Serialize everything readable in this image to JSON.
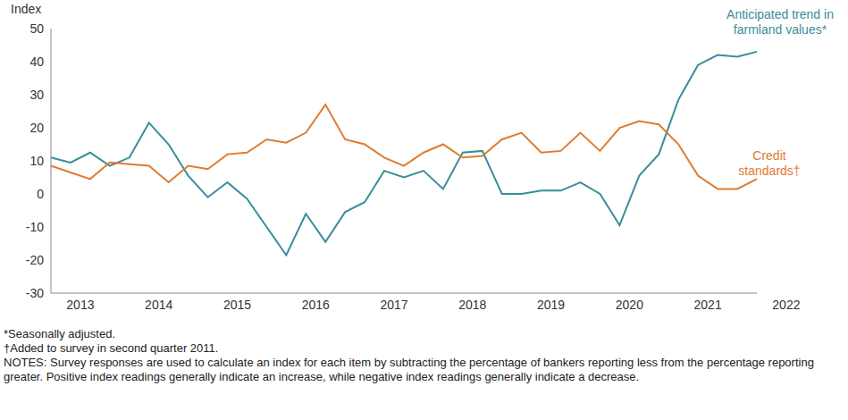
{
  "chart_data": {
    "type": "line",
    "y_label": "Index",
    "categories": [
      "2013",
      null,
      null,
      null,
      "2014",
      null,
      null,
      null,
      "2015",
      null,
      null,
      null,
      "2016",
      null,
      null,
      null,
      "2017",
      null,
      null,
      null,
      "2018",
      null,
      null,
      null,
      "2019",
      null,
      null,
      null,
      "2020",
      null,
      null,
      null,
      "2021",
      null,
      null,
      null,
      "2022"
    ],
    "series": [
      {
        "name": "Anticipated trend in farmland values*",
        "color": "#3a8d9c",
        "values": [
          11,
          9.5,
          12.5,
          8.5,
          11,
          21.5,
          15,
          5.5,
          -1,
          3.5,
          -1.5,
          -10,
          -18.5,
          -6,
          -14.5,
          -5.5,
          -2.5,
          7,
          5,
          7,
          1.5,
          12.5,
          13,
          0,
          0,
          1,
          1,
          3.5,
          0,
          -9.5,
          5.5,
          12,
          28.5,
          39,
          42,
          41.5,
          43
        ]
      },
      {
        "name": "Credit standards†",
        "color": "#e07b2f",
        "values": [
          8.5,
          6.5,
          4.5,
          9.5,
          9,
          8.5,
          3.5,
          8.5,
          7.5,
          12,
          12.5,
          16.5,
          15.5,
          18.5,
          27,
          16.5,
          15,
          11,
          8.5,
          12.5,
          15,
          11,
          11.5,
          16.5,
          18.5,
          12.5,
          13,
          18.5,
          13,
          20,
          22,
          21,
          15,
          5.5,
          1.5,
          1.5,
          4.5
        ]
      }
    ],
    "ylim": [
      -30,
      50
    ],
    "yticks": [
      -30,
      -20,
      -10,
      0,
      10,
      20,
      30,
      40,
      50
    ],
    "grid": false,
    "notes": [
      "*Seasonally adjusted.",
      "†Added to survey in second quarter 2011.",
      "NOTES: Survey responses are used to calculate an index for each item by subtracting the percentage of bankers reporting less from the percentage reporting greater. Positive index readings generally indicate an increase, while negative index readings generally indicate a decrease."
    ]
  }
}
